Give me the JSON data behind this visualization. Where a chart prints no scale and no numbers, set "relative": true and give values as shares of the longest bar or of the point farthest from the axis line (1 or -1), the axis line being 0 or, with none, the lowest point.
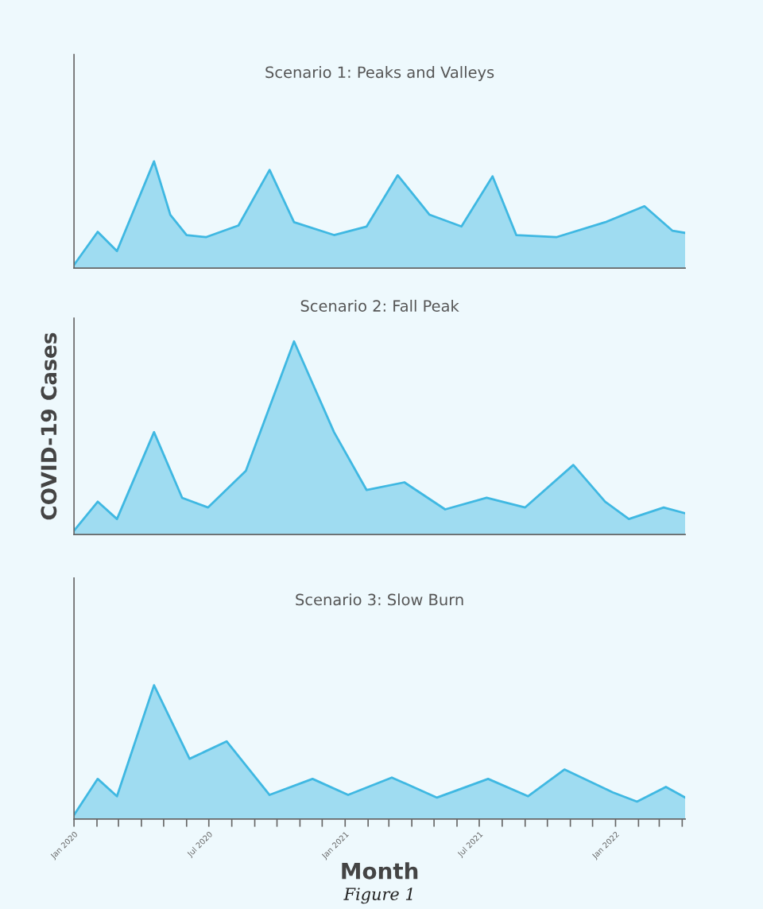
{
  "chart_data": [
    {
      "type": "area",
      "title": "Scenario 1: Peaks and Valleys",
      "relative": true,
      "tick_labels": false,
      "grid": false,
      "legend": false,
      "xlim": [
        "2020-01-01",
        "2022-04-05"
      ],
      "x": [
        "2020-01-01",
        "2020-02-02",
        "2020-02-28",
        "2020-04-18",
        "2020-05-10",
        "2020-06-01",
        "2020-06-27",
        "2020-08-10",
        "2020-09-21",
        "2020-10-24",
        "2020-12-17",
        "2021-01-30",
        "2021-03-13",
        "2021-04-25",
        "2021-06-07",
        "2021-07-19",
        "2021-08-20",
        "2021-10-13",
        "2021-12-18",
        "2022-02-09",
        "2022-03-19",
        "2022-04-05"
      ],
      "series": [
        {
          "color": "#3fb8e2",
          "values": [
            0.03,
            0.34,
            0.16,
            1.0,
            0.5,
            0.31,
            0.29,
            0.4,
            0.92,
            0.43,
            0.31,
            0.39,
            0.87,
            0.5,
            0.39,
            0.86,
            0.31,
            0.29,
            0.43,
            0.58,
            0.35,
            0.33
          ]
        }
      ]
    },
    {
      "type": "area",
      "title": "Scenario 2: Fall Peak",
      "ylabel": "COVID-19 Cases",
      "relative": true,
      "tick_labels": false,
      "grid": false,
      "legend": false,
      "xlim": [
        "2020-01-01",
        "2022-04-05"
      ],
      "x": [
        "2020-01-01",
        "2020-02-02",
        "2020-02-28",
        "2020-04-18",
        "2020-05-26",
        "2020-06-30",
        "2020-08-20",
        "2020-10-24",
        "2020-12-17",
        "2021-01-30",
        "2021-03-22",
        "2021-05-16",
        "2021-07-11",
        "2021-09-01",
        "2021-11-05",
        "2021-12-18",
        "2022-01-19",
        "2022-03-07",
        "2022-04-05"
      ],
      "series": [
        {
          "color": "#3fb8e2",
          "values": [
            0.02,
            0.17,
            0.08,
            0.53,
            0.19,
            0.14,
            0.33,
            1.0,
            0.53,
            0.23,
            0.27,
            0.13,
            0.19,
            0.14,
            0.36,
            0.17,
            0.08,
            0.14,
            0.11
          ]
        }
      ]
    },
    {
      "type": "area",
      "title": "Scenario 3: Slow Burn",
      "xlabel": "Month",
      "relative": true,
      "tick_labels": "x",
      "grid": false,
      "legend": false,
      "xlim": [
        "2020-01-01",
        "2022-04-05"
      ],
      "annotations": [
        "Figure 1"
      ],
      "xticks": [
        {
          "value": "2020-01",
          "label": "Jan 2020"
        },
        {
          "value": "2020-02",
          "label": null
        },
        {
          "value": "2020-03",
          "label": null
        },
        {
          "value": "2020-04",
          "label": null
        },
        {
          "value": "2020-05",
          "label": null
        },
        {
          "value": "2020-06",
          "label": null
        },
        {
          "value": "2020-07",
          "label": "Jul 2020"
        },
        {
          "value": "2020-08",
          "label": null
        },
        {
          "value": "2020-09",
          "label": null
        },
        {
          "value": "2020-10",
          "label": null
        },
        {
          "value": "2020-11",
          "label": null
        },
        {
          "value": "2020-12",
          "label": null
        },
        {
          "value": "2021-01",
          "label": "Jan 2021"
        },
        {
          "value": "2021-02",
          "label": null
        },
        {
          "value": "2021-03",
          "label": null
        },
        {
          "value": "2021-04",
          "label": null
        },
        {
          "value": "2021-05",
          "label": null
        },
        {
          "value": "2021-06",
          "label": null
        },
        {
          "value": "2021-07",
          "label": "Jul 2021"
        },
        {
          "value": "2021-08",
          "label": null
        },
        {
          "value": "2021-09",
          "label": null
        },
        {
          "value": "2021-10",
          "label": null
        },
        {
          "value": "2021-11",
          "label": null
        },
        {
          "value": "2021-12",
          "label": null
        },
        {
          "value": "2022-01",
          "label": "Jan 2022"
        },
        {
          "value": "2022-02",
          "label": null
        },
        {
          "value": "2022-03",
          "label": null
        },
        {
          "value": "2022-04",
          "label": null
        }
      ],
      "x": [
        "2020-01-01",
        "2020-02-02",
        "2020-02-28",
        "2020-04-18",
        "2020-06-05",
        "2020-07-25",
        "2020-09-21",
        "2020-11-18",
        "2021-01-05",
        "2021-03-05",
        "2021-05-05",
        "2021-07-13",
        "2021-09-05",
        "2021-10-24",
        "2021-12-28",
        "2022-01-30",
        "2022-03-10",
        "2022-04-05"
      ],
      "series": [
        {
          "color": "#3fb8e2",
          "values": [
            0.03,
            0.3,
            0.17,
            1.0,
            0.45,
            0.58,
            0.18,
            0.3,
            0.18,
            0.31,
            0.16,
            0.3,
            0.17,
            0.37,
            0.2,
            0.13,
            0.24,
            0.16
          ]
        }
      ]
    }
  ]
}
